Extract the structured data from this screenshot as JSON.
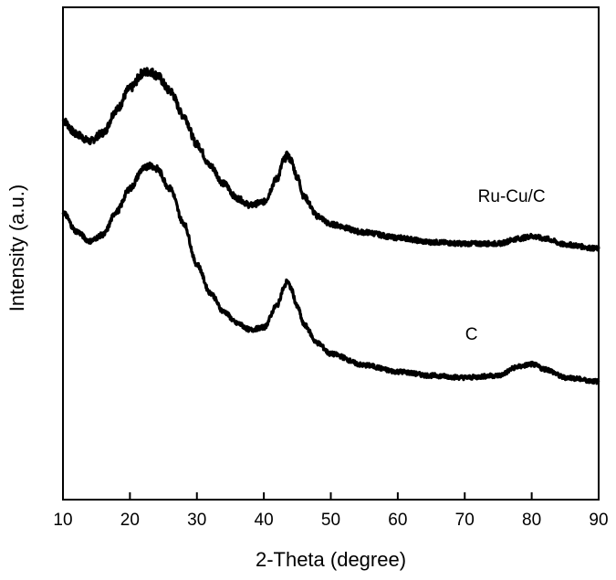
{
  "chart_data": {
    "type": "line",
    "title": "",
    "xlabel": "2-Theta (degree)",
    "ylabel": "Intensity (a.u.)",
    "xlim": [
      10,
      90
    ],
    "ylim": [
      0,
      1
    ],
    "x_ticks": [
      10,
      20,
      30,
      40,
      50,
      60,
      70,
      80,
      90
    ],
    "y_ticks_shown": false,
    "grid": false,
    "legend": "inline labels",
    "series": [
      {
        "name": "Ru-Cu/C",
        "color": "#000000",
        "x": [
          10,
          12,
          14,
          16,
          18,
          20,
          22,
          23,
          24,
          26,
          28,
          30,
          32,
          34,
          36,
          38,
          40,
          42,
          43,
          43.5,
          44,
          45,
          46,
          48,
          50,
          55,
          60,
          65,
          70,
          75,
          78,
          80,
          82,
          85,
          90
        ],
        "y": [
          0.77,
          0.742,
          0.728,
          0.745,
          0.792,
          0.835,
          0.867,
          0.87,
          0.862,
          0.83,
          0.78,
          0.722,
          0.678,
          0.642,
          0.612,
          0.598,
          0.605,
          0.652,
          0.69,
          0.7,
          0.69,
          0.655,
          0.615,
          0.576,
          0.559,
          0.543,
          0.532,
          0.523,
          0.52,
          0.52,
          0.53,
          0.535,
          0.53,
          0.518,
          0.51
        ]
      },
      {
        "name": "C",
        "color": "#000000",
        "x": [
          10,
          12,
          14,
          16,
          18,
          20,
          22,
          23,
          24,
          26,
          28,
          30,
          32,
          34,
          36,
          38,
          40,
          42,
          43,
          43.5,
          44,
          45,
          46,
          48,
          50,
          55,
          60,
          65,
          70,
          75,
          78,
          80,
          82,
          85,
          90
        ],
        "y": [
          0.583,
          0.545,
          0.525,
          0.538,
          0.585,
          0.632,
          0.672,
          0.68,
          0.672,
          0.632,
          0.562,
          0.478,
          0.42,
          0.382,
          0.358,
          0.345,
          0.35,
          0.395,
          0.43,
          0.445,
          0.43,
          0.392,
          0.355,
          0.318,
          0.296,
          0.273,
          0.26,
          0.252,
          0.248,
          0.252,
          0.27,
          0.275,
          0.265,
          0.248,
          0.24
        ]
      }
    ],
    "annotations": [
      {
        "text": "Ru-Cu/C",
        "x": 77,
        "y": 0.605
      },
      {
        "text": "C",
        "x": 71,
        "y": 0.325
      }
    ]
  }
}
